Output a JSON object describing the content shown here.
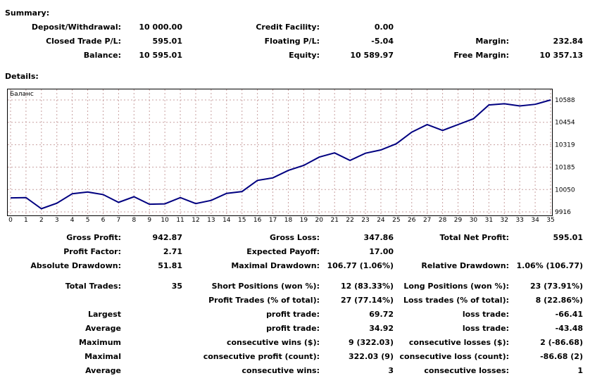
{
  "summary": {
    "heading": "Summary:",
    "deposit_label": "Deposit/Withdrawal:",
    "deposit_value": "10 000.00",
    "credit_label": "Credit Facility:",
    "credit_value": "0.00",
    "closed_pl_label": "Closed Trade P/L:",
    "closed_pl_value": "595.01",
    "floating_pl_label": "Floating P/L:",
    "floating_pl_value": "-5.04",
    "margin_label": "Margin:",
    "margin_value": "232.84",
    "balance_label": "Balance:",
    "balance_value": "10 595.01",
    "equity_label": "Equity:",
    "equity_value": "10 589.97",
    "free_margin_label": "Free Margin:",
    "free_margin_value": "10 357.13"
  },
  "details": {
    "heading": "Details:"
  },
  "chart_data": {
    "type": "line",
    "label": "Баланс",
    "x": [
      0,
      1,
      2,
      3,
      4,
      5,
      6,
      7,
      8,
      9,
      10,
      11,
      12,
      13,
      14,
      15,
      16,
      17,
      18,
      19,
      20,
      21,
      22,
      23,
      24,
      25,
      26,
      27,
      28,
      29,
      30,
      31,
      32,
      33,
      34,
      35
    ],
    "series": [
      {
        "values": [
          10000,
          10002,
          9935,
          9968,
          10025,
          10035,
          10020,
          9973,
          10007,
          9962,
          9964,
          10002,
          9966,
          9985,
          10027,
          10038,
          10105,
          10120,
          10165,
          10195,
          10245,
          10270,
          10225,
          10268,
          10288,
          10325,
          10395,
          10440,
          10405,
          10440,
          10475,
          10558,
          10565,
          10552,
          10562,
          10588
        ]
      }
    ],
    "x_ticks": [
      "0",
      "1",
      "2",
      "3",
      "4",
      "5",
      "6",
      "7",
      "8",
      "9",
      "10",
      "11",
      "12",
      "13",
      "14",
      "15",
      "16",
      "17",
      "18",
      "19",
      "20",
      "21",
      "22",
      "23",
      "24",
      "25",
      "26",
      "27",
      "28",
      "29",
      "30",
      "31",
      "32",
      "33",
      "34",
      "35"
    ],
    "y_ticks": [
      "10588",
      "10454",
      "10319",
      "10185",
      "10050",
      "9916"
    ],
    "ylim": [
      9916,
      10588
    ],
    "line_color": "#000080",
    "grid": true,
    "grid_color": "#c8a0a0"
  },
  "stats": {
    "gross_profit_label": "Gross Profit:",
    "gross_profit_value": "942.87",
    "gross_loss_label": "Gross Loss:",
    "gross_loss_value": "347.86",
    "total_net_profit_label": "Total Net Profit:",
    "total_net_profit_value": "595.01",
    "profit_factor_label": "Profit Factor:",
    "profit_factor_value": "2.71",
    "expected_payoff_label": "Expected Payoff:",
    "expected_payoff_value": "17.00",
    "absolute_drawdown_label": "Absolute Drawdown:",
    "absolute_drawdown_value": "51.81",
    "maximal_drawdown_label": "Maximal Drawdown:",
    "maximal_drawdown_value": "106.77 (1.06%)",
    "relative_drawdown_label": "Relative Drawdown:",
    "relative_drawdown_value": "1.06% (106.77)",
    "total_trades_label": "Total Trades:",
    "total_trades_value": "35",
    "short_positions_label": "Short Positions (won %):",
    "short_positions_value": "12 (83.33%)",
    "long_positions_label": "Long Positions (won %):",
    "long_positions_value": "23 (73.91%)",
    "profit_trades_label": "Profit Trades (% of total):",
    "profit_trades_value": "27 (77.14%)",
    "loss_trades_label": "Loss trades (% of total):",
    "loss_trades_value": "8 (22.86%)",
    "largest_label": "Largest",
    "largest_profit_label": "profit trade:",
    "largest_profit_value": "69.72",
    "largest_loss_label": "loss trade:",
    "largest_loss_value": "-66.41",
    "average_label": "Average",
    "average_profit_label": "profit trade:",
    "average_profit_value": "34.92",
    "average_loss_label": "loss trade:",
    "average_loss_value": "-43.48",
    "maximum_label": "Maximum",
    "max_wins_label": "consecutive wins ($):",
    "max_wins_value": "9 (322.03)",
    "max_losses_label": "consecutive losses ($):",
    "max_losses_value": "2 (-86.68)",
    "maximal_label": "Maximal",
    "maximal_profit_label": "consecutive profit (count):",
    "maximal_profit_value": "322.03 (9)",
    "maximal_loss_label": "consecutive loss (count):",
    "maximal_loss_value": "-86.68 (2)",
    "average2_label": "Average",
    "avg_wins_label": "consecutive wins:",
    "avg_wins_value": "3",
    "avg_losses_label": "consecutive losses:",
    "avg_losses_value": "1"
  }
}
